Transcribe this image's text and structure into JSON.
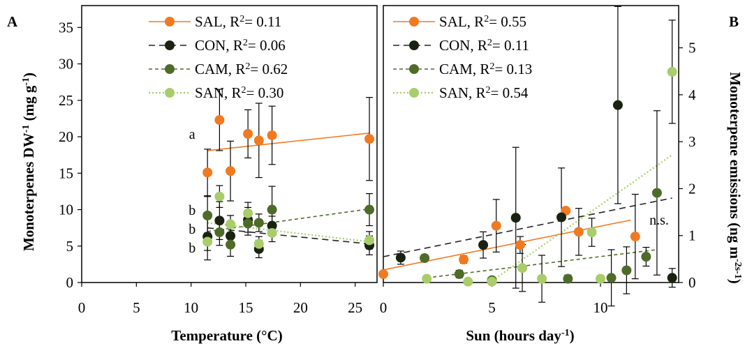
{
  "colors": {
    "SAL": "#f07a22",
    "CON": "#1a2212",
    "CAM": "#4f6b2a",
    "SAN": "#a8cd6a",
    "axis": "#000000",
    "errorbar": "#000000"
  },
  "chart_data": [
    {
      "type": "scatter",
      "panel_label": "A",
      "title": "",
      "xlabel": "Temperature (°C)",
      "ylabel": "Monoterpenes DW-1 (mg g-1)",
      "xlim": [
        0,
        27
      ],
      "ylim": [
        0,
        38
      ],
      "xticks": [
        0,
        5,
        10,
        15,
        20,
        25
      ],
      "yticks": [
        0,
        5,
        10,
        15,
        20,
        25,
        30,
        35
      ],
      "grid": false,
      "legend_position": "top",
      "series": [
        {
          "name": "SAL",
          "legend_label": "SAL, R2= 0.11",
          "r2": "0.11",
          "line_style": "solid",
          "points": [
            {
              "x": 11.5,
              "y": 15.1,
              "err": 3.2
            },
            {
              "x": 12.6,
              "y": 22.3,
              "err": 4.2
            },
            {
              "x": 13.6,
              "y": 15.3,
              "err": 4.1
            },
            {
              "x": 15.2,
              "y": 20.4,
              "err": 3.3
            },
            {
              "x": 16.2,
              "y": 19.5,
              "err": 5.1
            },
            {
              "x": 17.4,
              "y": 20.2,
              "err": 4.0
            },
            {
              "x": 26.3,
              "y": 19.7,
              "err": 5.7
            }
          ],
          "trend": {
            "x": [
              11.5,
              26.3
            ],
            "y": [
              18.1,
              20.5
            ]
          }
        },
        {
          "name": "CON",
          "legend_label": "CON, R2= 0.06",
          "r2": "0.06",
          "line_style": "dashed",
          "points": [
            {
              "x": 11.5,
              "y": 6.3,
              "err": 3.2
            },
            {
              "x": 12.6,
              "y": 8.5,
              "err": 2.6
            },
            {
              "x": 13.6,
              "y": 6.4,
              "err": 1.3
            },
            {
              "x": 15.2,
              "y": 8.6,
              "err": 1.7
            },
            {
              "x": 16.2,
              "y": 4.6,
              "err": 1.2
            },
            {
              "x": 17.4,
              "y": 7.8,
              "err": 1.3
            },
            {
              "x": 26.3,
              "y": 5.1,
              "err": 1.3
            }
          ],
          "trend": {
            "x": [
              11.5,
              26.3
            ],
            "y": [
              7.5,
              5.3
            ]
          }
        },
        {
          "name": "CAM",
          "legend_label": "CAM, R2= 0.62",
          "r2": "0.62",
          "line_style": "dashed-fine",
          "points": [
            {
              "x": 11.5,
              "y": 9.2,
              "err": 2.6
            },
            {
              "x": 12.6,
              "y": 6.9,
              "err": 1.8
            },
            {
              "x": 13.6,
              "y": 5.2,
              "err": 1.6
            },
            {
              "x": 15.2,
              "y": 8.1,
              "err": 1.6
            },
            {
              "x": 16.2,
              "y": 8.2,
              "err": 1.2
            },
            {
              "x": 17.4,
              "y": 10.0,
              "err": 3.2
            },
            {
              "x": 26.3,
              "y": 10.0,
              "err": 2.2
            }
          ],
          "trend": {
            "x": [
              11.5,
              26.3
            ],
            "y": [
              7.0,
              10.1
            ]
          }
        },
        {
          "name": "SAN",
          "legend_label": "SAN, R2= 0.30",
          "r2": "0.30",
          "line_style": "dotted",
          "points": [
            {
              "x": 11.5,
              "y": 5.6,
              "err": 1.2
            },
            {
              "x": 12.6,
              "y": 11.8,
              "err": 1.5
            },
            {
              "x": 13.6,
              "y": 8.0,
              "err": 1.2
            },
            {
              "x": 15.2,
              "y": 9.5,
              "err": 1.5
            },
            {
              "x": 16.2,
              "y": 5.3,
              "err": 1.0
            },
            {
              "x": 17.4,
              "y": 6.8,
              "err": 1.2
            },
            {
              "x": 26.3,
              "y": 5.8,
              "err": 1.2
            }
          ],
          "trend": {
            "x": [
              11.5,
              26.3
            ],
            "y": [
              8.2,
              5.6
            ]
          }
        }
      ],
      "annotations": [
        {
          "text": "a",
          "x": 10.1,
          "y": 19.7
        },
        {
          "text": "b",
          "x": 10.1,
          "y": 9.3
        },
        {
          "text": "b",
          "x": 10.1,
          "y": 6.7
        },
        {
          "text": "b",
          "x": 10.1,
          "y": 4.1
        }
      ]
    },
    {
      "type": "scatter",
      "panel_label": "B",
      "title": "",
      "xlabel": "Sun (hours day-1)",
      "ylabel": "Monoterpene emissions (ng m-2s-1)",
      "y_axis_side": "right",
      "xlim": [
        0,
        13.6
      ],
      "ylim": [
        0,
        5.9
      ],
      "xticks": [
        0,
        5,
        10
      ],
      "yticks": [
        0,
        1,
        2,
        3,
        4,
        5
      ],
      "grid": false,
      "legend_position": "top",
      "series": [
        {
          "name": "SAL",
          "legend_label": "SAL, R2= 0.55",
          "r2": "0.55",
          "line_style": "solid",
          "points": [
            {
              "x": 0.0,
              "y": 0.18,
              "err": 0
            },
            {
              "x": 3.7,
              "y": 0.49,
              "err": 0.08
            },
            {
              "x": 5.2,
              "y": 1.21,
              "err": 0.56
            },
            {
              "x": 6.3,
              "y": 0.8,
              "err": 0.18
            },
            {
              "x": 8.4,
              "y": 1.53,
              "err": 0
            },
            {
              "x": 9.0,
              "y": 1.08,
              "err": 0.5
            },
            {
              "x": 11.6,
              "y": 0.98,
              "err": 0.9
            }
          ],
          "trend": {
            "x": [
              0.0,
              11.4
            ],
            "y": [
              0.27,
              1.33
            ]
          }
        },
        {
          "name": "CON",
          "legend_label": "CON, R2= 0.11",
          "r2": "0.11",
          "line_style": "dashed",
          "points": [
            {
              "x": 0.8,
              "y": 0.53,
              "err": 0.14
            },
            {
              "x": 4.6,
              "y": 0.8,
              "err": 0.28
            },
            {
              "x": 6.1,
              "y": 1.38,
              "err": 1.5
            },
            {
              "x": 8.2,
              "y": 1.39,
              "err": 1.05
            },
            {
              "x": 10.8,
              "y": 3.78,
              "err": 2.1
            },
            {
              "x": 13.3,
              "y": 0.1,
              "err": 0.2
            }
          ],
          "trend": {
            "x": [
              0.0,
              13.3
            ],
            "y": [
              0.55,
              1.8
            ]
          }
        },
        {
          "name": "CAM",
          "legend_label": "CAM, R2= 0.13",
          "r2": "0.13",
          "line_style": "dashed-fine",
          "points": [
            {
              "x": 1.9,
              "y": 0.52,
              "err": 0.07
            },
            {
              "x": 3.5,
              "y": 0.18,
              "err": 0.08
            },
            {
              "x": 5.0,
              "y": 0.05,
              "err": 0.05
            },
            {
              "x": 8.5,
              "y": 0.08,
              "err": 0.08
            },
            {
              "x": 10.5,
              "y": 0.1,
              "err": 0.6
            },
            {
              "x": 11.2,
              "y": 0.26,
              "err": 0.5
            },
            {
              "x": 12.1,
              "y": 0.55,
              "err": 0.2
            },
            {
              "x": 12.6,
              "y": 1.91,
              "err": 1.75
            }
          ],
          "trend": {
            "x": [
              2.0,
              12.6
            ],
            "y": [
              0.1,
              0.7
            ]
          }
        },
        {
          "name": "SAN",
          "legend_label": "SAN, R2= 0.54",
          "r2": "0.54",
          "line_style": "dotted",
          "points": [
            {
              "x": 2.0,
              "y": 0.08,
              "err": 0
            },
            {
              "x": 3.9,
              "y": 0.02,
              "err": 0
            },
            {
              "x": 5.0,
              "y": 0.02,
              "err": 0
            },
            {
              "x": 6.4,
              "y": 0.31,
              "err": 0.5
            },
            {
              "x": 7.3,
              "y": 0.08,
              "err": 0.5
            },
            {
              "x": 9.6,
              "y": 1.07,
              "err": 0.3
            },
            {
              "x": 10.0,
              "y": 0.08,
              "err": 0
            },
            {
              "x": 13.3,
              "y": 4.49,
              "err": 1.1
            }
          ],
          "trend": {
            "x": [
              4.9,
              13.3
            ],
            "y": [
              0.0,
              2.72
            ]
          }
        }
      ],
      "annotations": [
        {
          "text": "n.s.",
          "x": 12.7,
          "y": 1.23
        }
      ]
    }
  ]
}
